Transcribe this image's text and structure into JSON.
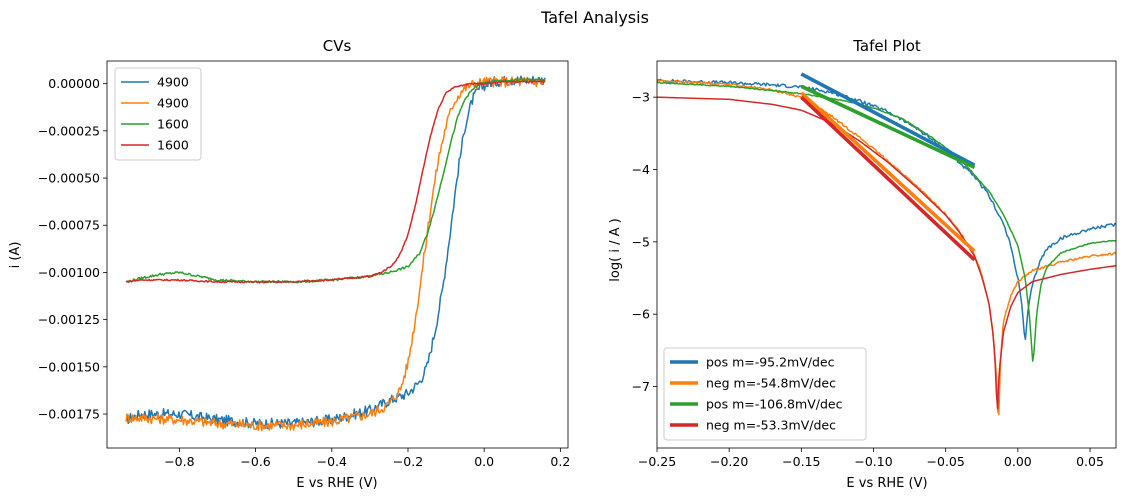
{
  "suptitle": "Tafel Analysis",
  "chart_data": [
    {
      "type": "line",
      "title": "CVs",
      "xlabel": "E vs RHE (V)",
      "ylabel": "i (A)",
      "xlim": [
        -0.99,
        0.22
      ],
      "ylim": [
        -0.00193,
        0.00012
      ],
      "xticks": [
        -0.8,
        -0.6,
        -0.4,
        -0.2,
        0.0,
        0.2
      ],
      "xtick_labels": [
        "−0.8",
        "−0.6",
        "−0.4",
        "−0.2",
        "0.0",
        "0.2"
      ],
      "yticks": [
        0.0,
        -0.00025,
        -0.0005,
        -0.00075,
        -0.001,
        -0.00125,
        -0.0015,
        -0.00175
      ],
      "ytick_labels": [
        "0.00000",
        "−0.00025",
        "−0.00050",
        "−0.00075",
        "−0.00100",
        "−0.00125",
        "−0.00150",
        "−0.00175"
      ],
      "legend_position": "upper-left",
      "series": [
        {
          "name": "4900",
          "color": "#1f77b4",
          "noise": 2.8e-05,
          "x": [
            -0.94,
            -0.9,
            -0.8,
            -0.7,
            -0.6,
            -0.5,
            -0.4,
            -0.3,
            -0.25,
            -0.2,
            -0.17,
            -0.15,
            -0.13,
            -0.11,
            -0.09,
            -0.07,
            -0.05,
            -0.03,
            -0.01,
            0.02,
            0.08,
            0.16
          ],
          "y": [
            -0.00178,
            -0.00175,
            -0.00175,
            -0.00178,
            -0.0018,
            -0.0018,
            -0.00178,
            -0.00173,
            -0.00168,
            -0.00164,
            -0.00158,
            -0.0015,
            -0.00132,
            -0.0011,
            -0.0008,
            -0.00048,
            -0.00022,
            -8e-05,
            -2e-05,
            1e-05,
            2e-05,
            2e-05
          ]
        },
        {
          "name": "4900",
          "color": "#ff7f0e",
          "noise": 2.8e-05,
          "x": [
            -0.94,
            -0.9,
            -0.8,
            -0.7,
            -0.6,
            -0.5,
            -0.4,
            -0.3,
            -0.25,
            -0.22,
            -0.2,
            -0.18,
            -0.16,
            -0.14,
            -0.12,
            -0.1,
            -0.08,
            -0.06,
            -0.04,
            -0.02,
            0.0,
            0.05,
            0.16
          ],
          "y": [
            -0.00177,
            -0.00177,
            -0.00178,
            -0.0018,
            -0.00181,
            -0.00181,
            -0.00179,
            -0.00175,
            -0.0017,
            -0.00162,
            -0.00148,
            -0.00124,
            -0.00095,
            -0.00065,
            -0.0004,
            -0.00022,
            -0.0001,
            -4e-05,
            -1e-05,
            0.0,
            1e-05,
            1e-05,
            1e-05
          ]
        },
        {
          "name": "1600",
          "color": "#2ca02c",
          "noise": 6e-06,
          "x": [
            -0.94,
            -0.9,
            -0.85,
            -0.8,
            -0.75,
            -0.7,
            -0.6,
            -0.5,
            -0.4,
            -0.3,
            -0.25,
            -0.2,
            -0.17,
            -0.15,
            -0.13,
            -0.11,
            -0.09,
            -0.07,
            -0.05,
            -0.03,
            -0.01,
            0.02,
            0.08,
            0.16
          ],
          "y": [
            -0.00105,
            -0.00103,
            -0.00101,
            -0.001,
            -0.00102,
            -0.00104,
            -0.00105,
            -0.00105,
            -0.00104,
            -0.00102,
            -0.001,
            -0.00097,
            -0.0009,
            -0.0008,
            -0.00066,
            -0.0005,
            -0.00033,
            -0.00018,
            -8e-05,
            -3e-05,
            0.0,
            1e-05,
            2e-05,
            2e-05
          ]
        },
        {
          "name": "1600",
          "color": "#d62728",
          "noise": 4e-06,
          "x": [
            -0.94,
            -0.9,
            -0.8,
            -0.7,
            -0.6,
            -0.5,
            -0.4,
            -0.3,
            -0.27,
            -0.24,
            -0.22,
            -0.2,
            -0.18,
            -0.16,
            -0.14,
            -0.12,
            -0.1,
            -0.08,
            -0.06,
            -0.04,
            -0.02,
            0.0,
            0.05,
            0.16
          ],
          "y": [
            -0.00105,
            -0.00104,
            -0.00104,
            -0.00105,
            -0.00105,
            -0.00105,
            -0.00104,
            -0.00102,
            -0.001,
            -0.00096,
            -0.0009,
            -0.0008,
            -0.00064,
            -0.00045,
            -0.00027,
            -0.00013,
            -5e-05,
            -2e-05,
            -1e-05,
            0.0,
            0.0,
            0.0,
            1e-05,
            1e-05
          ]
        }
      ]
    },
    {
      "type": "line",
      "title": "Tafel Plot",
      "xlabel": "E vs RHE (V)",
      "ylabel": "log( i / A )",
      "xlim": [
        -0.25,
        0.068
      ],
      "ylim": [
        -7.85,
        -2.5
      ],
      "xticks": [
        -0.25,
        -0.2,
        -0.15,
        -0.1,
        -0.05,
        0.0,
        0.05
      ],
      "xtick_labels": [
        "−0.25",
        "−0.20",
        "−0.15",
        "−0.10",
        "−0.05",
        "0.00",
        "0.05"
      ],
      "yticks": [
        -3,
        -4,
        -5,
        -6,
        -7
      ],
      "ytick_labels": [
        "−3",
        "−4",
        "−5",
        "−6",
        "−7"
      ],
      "legend_position": "lower-left",
      "curves": [
        {
          "color": "#1f77b4",
          "noise": 0.022,
          "x": [
            -0.25,
            -0.2,
            -0.17,
            -0.15,
            -0.13,
            -0.11,
            -0.09,
            -0.07,
            -0.05,
            -0.03,
            -0.02,
            -0.01,
            -0.005,
            0.0,
            0.003,
            0.005,
            0.007,
            0.01,
            0.015,
            0.02,
            0.03,
            0.05,
            0.068
          ],
          "y": [
            -2.77,
            -2.8,
            -2.83,
            -2.86,
            -2.93,
            -3.05,
            -3.2,
            -3.43,
            -3.73,
            -4.1,
            -4.36,
            -4.75,
            -5.05,
            -5.5,
            -5.9,
            -6.42,
            -5.95,
            -5.6,
            -5.28,
            -5.1,
            -4.95,
            -4.82,
            -4.76
          ]
        },
        {
          "color": "#ff7f0e",
          "noise": 0.015,
          "x": [
            -0.25,
            -0.2,
            -0.17,
            -0.15,
            -0.13,
            -0.11,
            -0.09,
            -0.07,
            -0.05,
            -0.04,
            -0.03,
            -0.025,
            -0.02,
            -0.017,
            -0.015,
            -0.0135,
            -0.012,
            -0.01,
            -0.005,
            0.0,
            0.01,
            0.03,
            0.05,
            0.068
          ],
          "y": [
            -2.77,
            -2.82,
            -2.9,
            -3.0,
            -3.25,
            -3.55,
            -3.88,
            -4.23,
            -4.62,
            -4.87,
            -5.18,
            -5.45,
            -5.85,
            -6.3,
            -6.8,
            -7.6,
            -6.6,
            -6.1,
            -5.75,
            -5.55,
            -5.4,
            -5.28,
            -5.2,
            -5.16
          ]
        },
        {
          "color": "#2ca02c",
          "noise": 0.006,
          "x": [
            -0.25,
            -0.2,
            -0.15,
            -0.12,
            -0.1,
            -0.08,
            -0.06,
            -0.04,
            -0.02,
            -0.01,
            0.0,
            0.005,
            0.008,
            0.0105,
            0.013,
            0.016,
            0.02,
            0.03,
            0.05,
            0.068
          ],
          "y": [
            -2.8,
            -2.85,
            -2.95,
            -3.05,
            -3.15,
            -3.3,
            -3.55,
            -3.85,
            -4.3,
            -4.62,
            -5.05,
            -5.5,
            -6.0,
            -6.72,
            -6.0,
            -5.6,
            -5.35,
            -5.15,
            -5.02,
            -4.98
          ]
        },
        {
          "color": "#d62728",
          "noise": 0.0,
          "x": [
            -0.25,
            -0.2,
            -0.17,
            -0.15,
            -0.13,
            -0.11,
            -0.09,
            -0.07,
            -0.05,
            -0.04,
            -0.03,
            -0.025,
            -0.02,
            -0.017,
            -0.015,
            -0.0145,
            -0.013,
            -0.01,
            -0.005,
            0.0,
            0.01,
            0.03,
            0.05,
            0.068
          ],
          "y": [
            -3.0,
            -3.03,
            -3.1,
            -3.18,
            -3.35,
            -3.6,
            -3.9,
            -4.25,
            -4.63,
            -4.88,
            -5.2,
            -5.48,
            -5.85,
            -6.3,
            -6.9,
            -7.55,
            -6.8,
            -6.25,
            -5.9,
            -5.7,
            -5.55,
            -5.45,
            -5.38,
            -5.33
          ]
        }
      ],
      "fits": [
        {
          "name": "pos m=-95.2mV/dec",
          "color": "#1f77b4",
          "x": [
            -0.15,
            -0.03
          ],
          "y": [
            -2.68,
            -3.94
          ]
        },
        {
          "name": "neg m=-54.8mV/dec",
          "color": "#ff7f0e",
          "x": [
            -0.15,
            -0.03
          ],
          "y": [
            -2.94,
            -5.13
          ]
        },
        {
          "name": "pos m=-106.8mV/dec",
          "color": "#2ca02c",
          "x": [
            -0.15,
            -0.03
          ],
          "y": [
            -2.85,
            -3.97
          ]
        },
        {
          "name": "neg m=-53.3mV/dec",
          "color": "#d62728",
          "x": [
            -0.15,
            -0.03
          ],
          "y": [
            -3.0,
            -5.25
          ]
        }
      ]
    }
  ]
}
